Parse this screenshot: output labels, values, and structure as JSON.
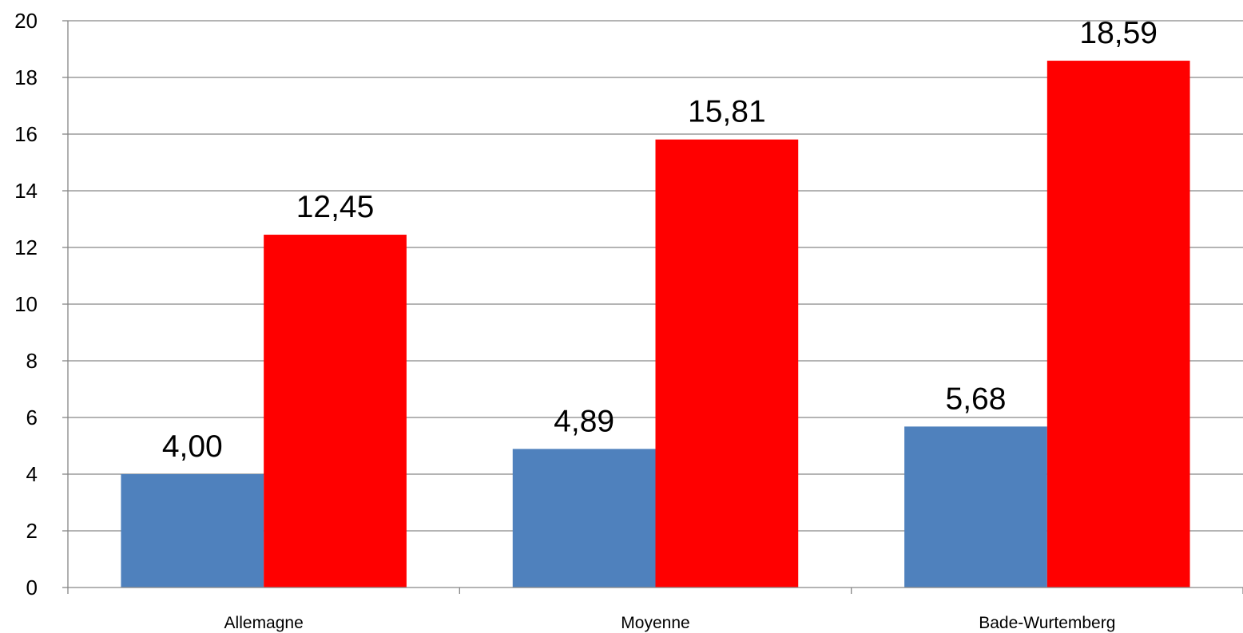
{
  "chart_data": {
    "type": "bar",
    "categories": [
      "Allemagne",
      "Moyenne",
      "Bade-Wurtemberg"
    ],
    "series": [
      {
        "values": [
          4.0,
          4.89,
          5.68
        ],
        "labels": [
          "4,00",
          "4,89",
          "5,68"
        ],
        "color": "#4f81bd"
      },
      {
        "values": [
          12.45,
          15.81,
          18.59
        ],
        "labels": [
          "12,45",
          "15,81",
          "18,59"
        ],
        "color": "#ff0000"
      }
    ],
    "ylim": [
      0,
      20
    ],
    "yticks": [
      0,
      2,
      4,
      6,
      8,
      10,
      12,
      14,
      16,
      18,
      20
    ],
    "title": "",
    "xlabel": "",
    "ylabel": "",
    "grid": true,
    "legend": "none",
    "axis_color": "#868686",
    "grid_color": "#868686"
  }
}
